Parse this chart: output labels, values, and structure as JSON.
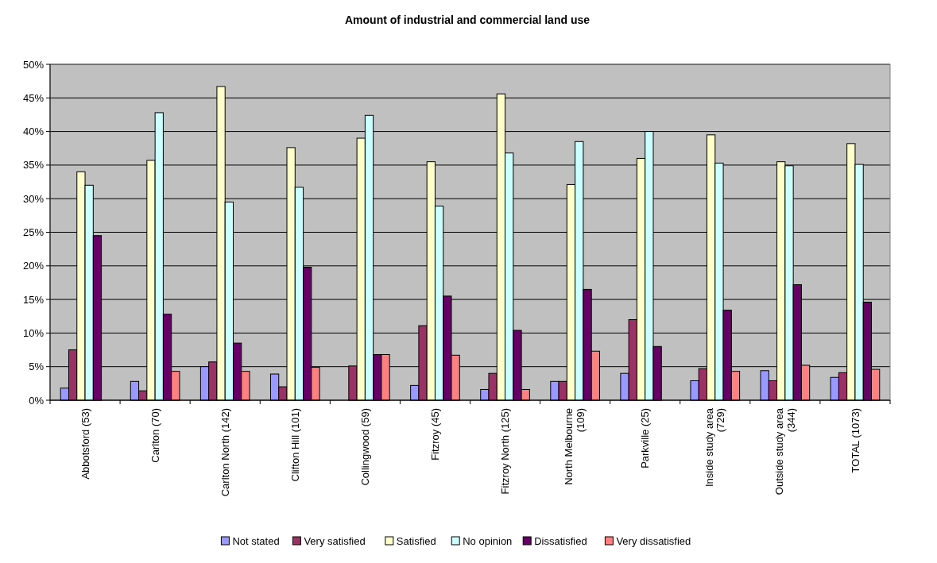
{
  "chart_data": {
    "type": "bar",
    "title": "Amount of industrial and commercial land use",
    "categories": [
      "Abbotsford (53)",
      "Carlton (70)",
      "Carlton North (142)",
      "Clifton Hill (101)",
      "Collingwood (59)",
      "Fitzroy (45)",
      "Fitzroy North (125)",
      "North Melbourne (109)",
      "Parkville (25)",
      "Inside study area (729)",
      "Outside study area (344)",
      "TOTAL (1073)"
    ],
    "series": [
      {
        "name": "Not stated",
        "color": "#9999ff",
        "values": [
          1.8,
          2.8,
          5.0,
          3.9,
          0,
          2.2,
          1.6,
          2.8,
          4.0,
          2.9,
          4.4,
          3.4
        ]
      },
      {
        "name": "Very satisfied",
        "color": "#993366",
        "values": [
          7.5,
          1.4,
          5.7,
          2.0,
          5.1,
          11.1,
          4.0,
          2.8,
          12.0,
          4.7,
          2.9,
          4.1
        ]
      },
      {
        "name": "Satisfied",
        "color": "#ffffcc",
        "values": [
          34.0,
          35.7,
          46.7,
          37.6,
          39.0,
          35.5,
          45.6,
          32.1,
          36.0,
          39.5,
          35.5,
          38.2
        ]
      },
      {
        "name": "No opinion",
        "color": "#ccffff",
        "values": [
          32.0,
          42.8,
          29.5,
          31.7,
          42.4,
          28.9,
          36.8,
          38.5,
          40.0,
          35.3,
          34.9,
          35.1
        ]
      },
      {
        "name": "Dissatisfied",
        "color": "#660066",
        "values": [
          24.5,
          12.8,
          8.5,
          19.8,
          6.8,
          15.5,
          10.4,
          16.5,
          8.0,
          13.4,
          17.2,
          14.6
        ]
      },
      {
        "name": "Very dissatisfied",
        "color": "#ff8080",
        "values": [
          0,
          4.3,
          4.3,
          4.9,
          6.8,
          6.7,
          1.6,
          7.3,
          0,
          4.3,
          5.2,
          4.6
        ]
      }
    ],
    "ylim": [
      0,
      50
    ],
    "yticks": [
      {
        "value": 0,
        "label": "0%"
      },
      {
        "value": 5,
        "label": "5%"
      },
      {
        "value": 10,
        "label": "10%"
      },
      {
        "value": 15,
        "label": "15%"
      },
      {
        "value": 20,
        "label": "20%"
      },
      {
        "value": 25,
        "label": "25%"
      },
      {
        "value": 30,
        "label": "30%"
      },
      {
        "value": 35,
        "label": "35%"
      },
      {
        "value": 40,
        "label": "40%"
      },
      {
        "value": 45,
        "label": "45%"
      },
      {
        "value": 50,
        "label": "50%"
      }
    ],
    "grid": "y",
    "legend": "bottom"
  }
}
